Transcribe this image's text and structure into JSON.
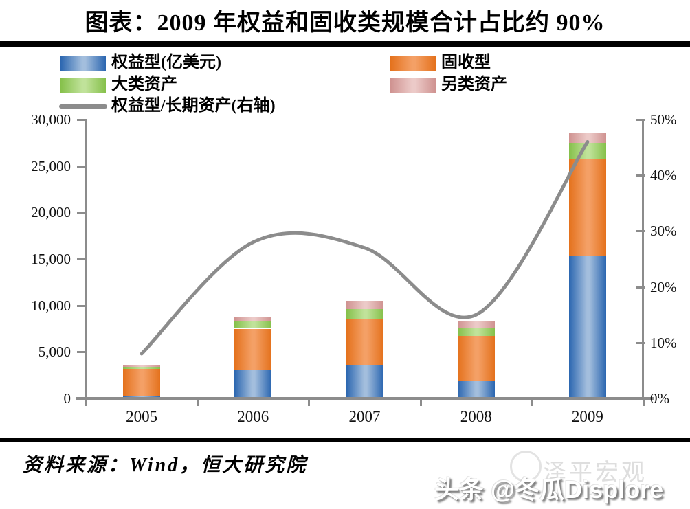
{
  "title": "图表：2009 年权益和固收类规模合计占比约 90%",
  "source": "资料来源：Wind，恒大研究院",
  "watermark": {
    "behind": "泽平宏观",
    "front": "头条 @冬瓜Displore"
  },
  "colors": {
    "equity_edge": "#2b66b0",
    "equity_center": "#a3bedd",
    "fixed_edge": "#e4711c",
    "fixed_center": "#f4a066",
    "multi_edge": "#85c04a",
    "multi_center": "#c0e29a",
    "alt_edge": "#cf9290",
    "alt_center": "#eccac8",
    "line": "#8c8c8c",
    "axis": "#8c8c8c"
  },
  "chart_data": {
    "type": "bar",
    "subtype": "stacked bars with smoothed line on secondary axis",
    "categories": [
      "2005",
      "2006",
      "2007",
      "2008",
      "2009"
    ],
    "series": [
      {
        "name": "权益型(亿美元)",
        "kind": "bar",
        "edge": "#2b66b0",
        "center": "#a3bedd",
        "values": [
          300,
          3100,
          3600,
          1900,
          15300
        ]
      },
      {
        "name": "固收型",
        "kind": "bar",
        "edge": "#e4711c",
        "center": "#f4a066",
        "values": [
          2900,
          4400,
          4900,
          4800,
          10500
        ]
      },
      {
        "name": "大类资产",
        "kind": "bar",
        "edge": "#85c04a",
        "center": "#c0e29a",
        "values": [
          150,
          750,
          1100,
          900,
          1700
        ]
      },
      {
        "name": "另类资产",
        "kind": "bar",
        "edge": "#cf9290",
        "center": "#eccac8",
        "values": [
          250,
          550,
          900,
          700,
          1000
        ]
      },
      {
        "name": "权益型/长期资产(右轴)",
        "kind": "line",
        "axis": "right",
        "color": "#8c8c8c",
        "values": [
          8,
          28,
          27,
          15,
          46
        ]
      }
    ],
    "left_axis": {
      "min": 0,
      "max": 30000,
      "tick_labels": [
        "30,000",
        "25,000",
        "20,000",
        "15,000",
        "10,000",
        "5,000",
        "0"
      ]
    },
    "right_axis": {
      "min": 0,
      "max": 50,
      "tick_labels": [
        "50%",
        "40%",
        "30%",
        "20%",
        "10%",
        "0%"
      ]
    },
    "grid": false,
    "legend_position": "top-left, two columns"
  }
}
